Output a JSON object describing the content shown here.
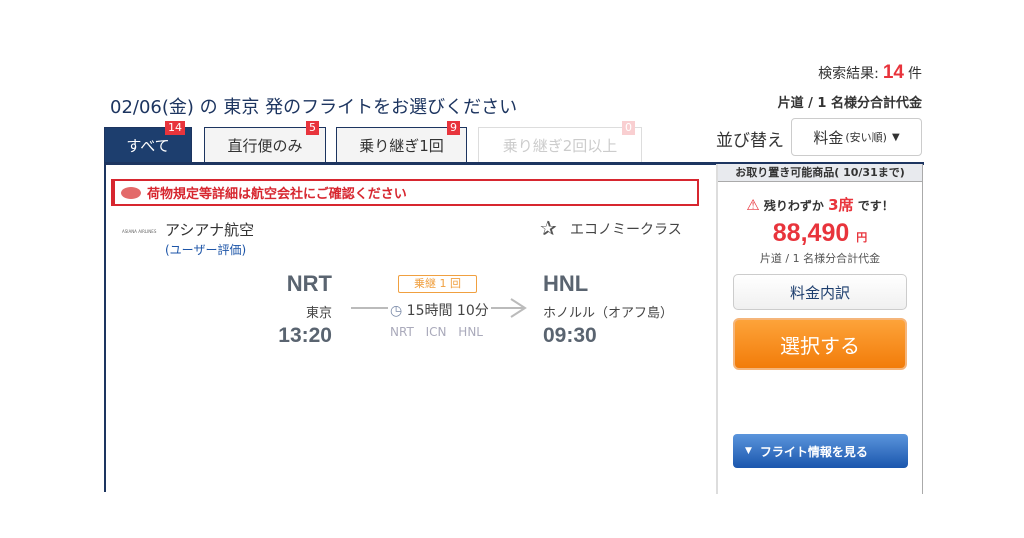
{
  "header": {
    "title": "02/06(金) の 東京 発のフライトをお選びください",
    "results_label": "検索結果:",
    "results_count": "14",
    "results_unit": "件",
    "price_note": "片道 / 1 名様分合計代金"
  },
  "sort": {
    "label": "並び替え",
    "value": "料金",
    "sub": "(安い順)"
  },
  "tabs": [
    {
      "label": "すべて",
      "count": "14",
      "active": true
    },
    {
      "label": "直行便のみ",
      "count": "5"
    },
    {
      "label": "乗り継ぎ1回",
      "count": "9"
    },
    {
      "label": "乗り継ぎ2回以上",
      "count": "0",
      "disabled": true
    }
  ],
  "alert": "荷物規定等詳細は航空会社にご確認ください",
  "flight": {
    "airline_logo": "ASIANA AIRLINES",
    "airline": "アシアナ航空",
    "rating_link": "(ユーザー評価)",
    "cabin": "エコノミークラス",
    "stops": "乗継 1 回",
    "duration": "15時間 10分",
    "via": "NRT ICN HNL",
    "origin": {
      "code": "NRT",
      "city": "東京",
      "time": "13:20"
    },
    "destination": {
      "code": "HNL",
      "city": "ホノルル（オアフ島）",
      "time": "09:30"
    }
  },
  "panel": {
    "header": "お取り置き可能商品( 10/31まで)",
    "warn_pre": "残りわずか",
    "warn_seats": "3席",
    "warn_post": "です！",
    "price": "88,490",
    "currency": "円",
    "price_note": "片道 / 1 名様分合計代金",
    "breakdown": "料金内訳",
    "select": "選択する",
    "flight_info": "フライト情報を見る"
  },
  "colors": {
    "accent": "#e8343c",
    "navy": "#1d3560",
    "orange": "#f27c0a"
  }
}
